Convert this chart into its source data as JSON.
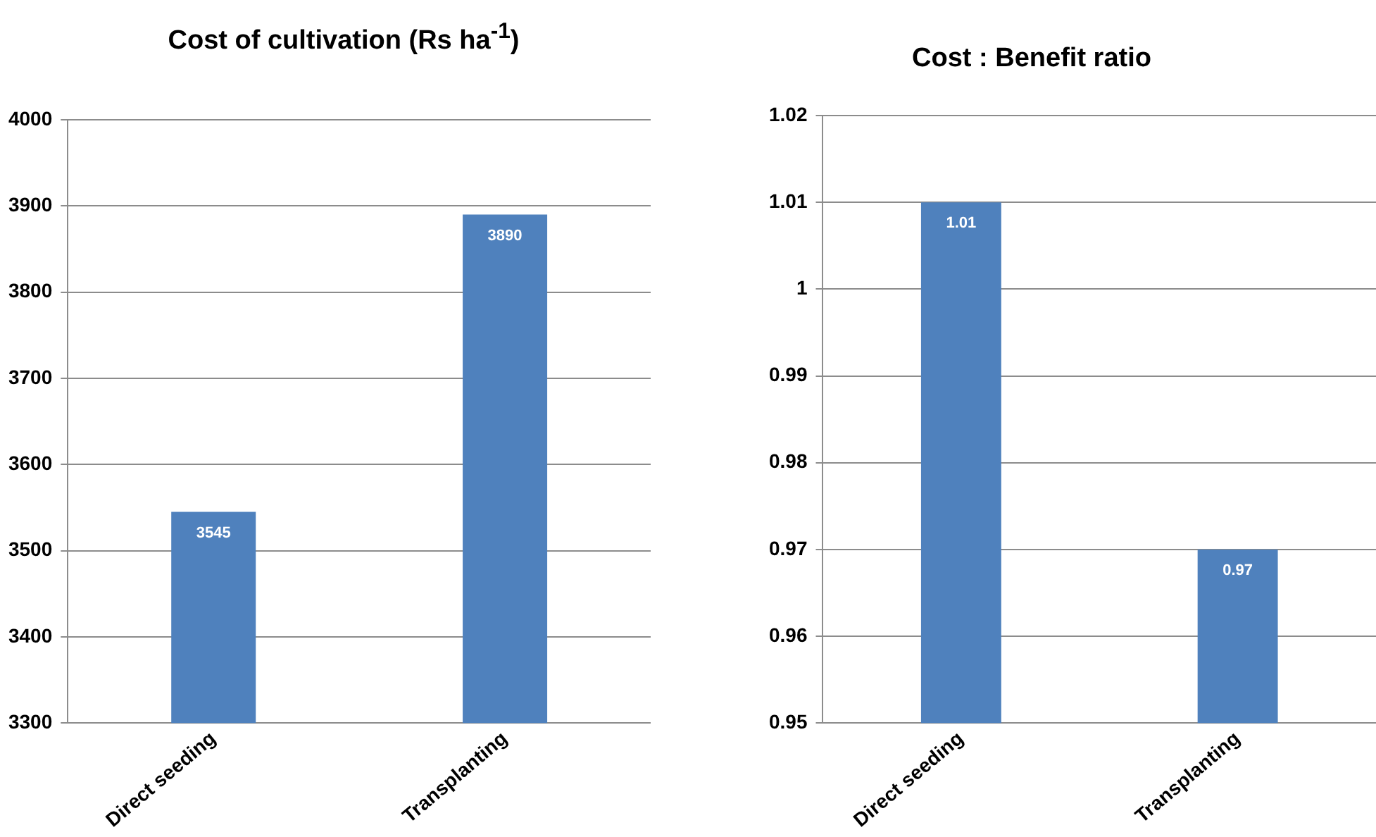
{
  "chart_data": [
    {
      "type": "bar",
      "title": "Cost of cultivation (Rs ha$^{-1}$)",
      "categories": [
        "Direct seeding",
        "Transplanting"
      ],
      "values": [
        3545,
        3890
      ],
      "color": "#4f81bd",
      "ylim": [
        3300,
        4000
      ],
      "yticks": [
        3300,
        3400,
        3500,
        3600,
        3700,
        3800,
        3900,
        4000
      ],
      "grid": "y",
      "data_labels": true
    },
    {
      "type": "bar",
      "title": "Cost : Benefit ratio",
      "categories": [
        "Direct seeding",
        "Transplanting"
      ],
      "values": [
        1.01,
        0.97
      ],
      "color": "#4f81bd",
      "ylim": [
        0.95,
        1.02
      ],
      "yticks": [
        0.95,
        0.96,
        0.97,
        0.98,
        0.99,
        1,
        1.01,
        1.02
      ],
      "grid": "y",
      "data_labels": true
    }
  ]
}
